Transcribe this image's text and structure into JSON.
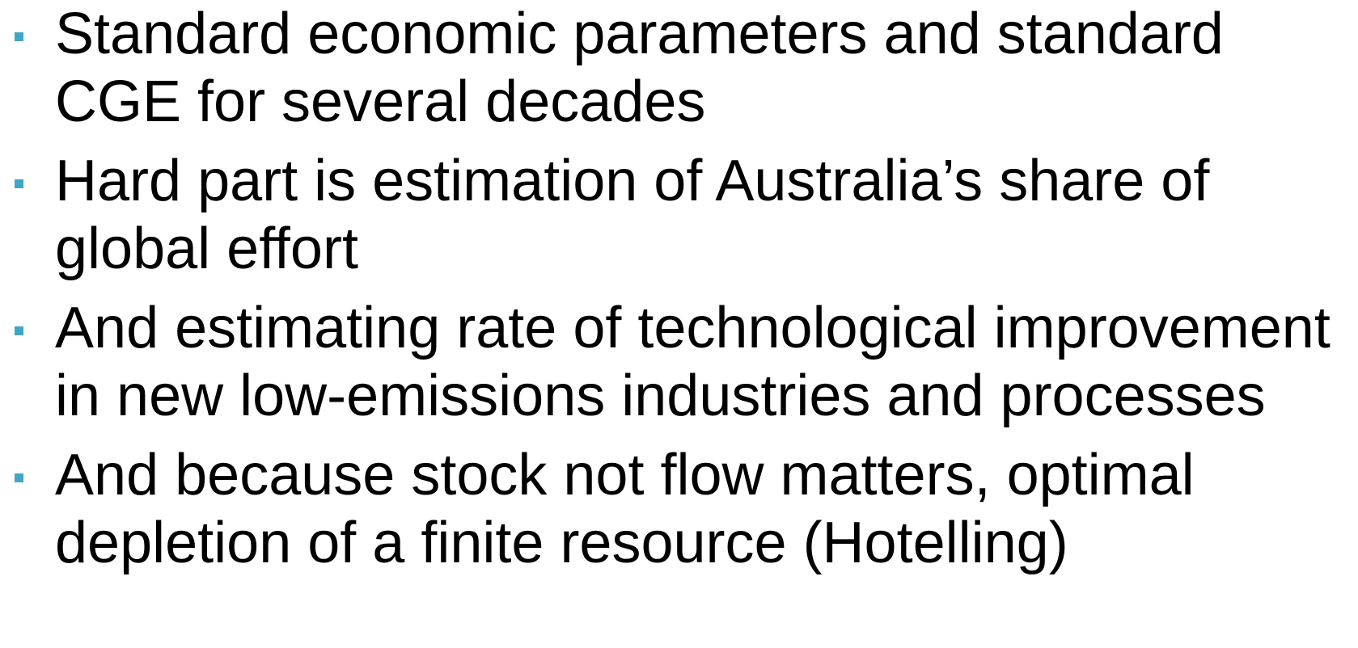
{
  "bullets": [
    "Standard economic parameters and standard CGE for several decades",
    "Hard part is estimation of Australia’s share of global effort",
    "And estimating rate of technological improvement in new low-emissions industries and processes",
    "And because stock not flow matters, optimal depletion of a finite resource (Hotelling)"
  ]
}
